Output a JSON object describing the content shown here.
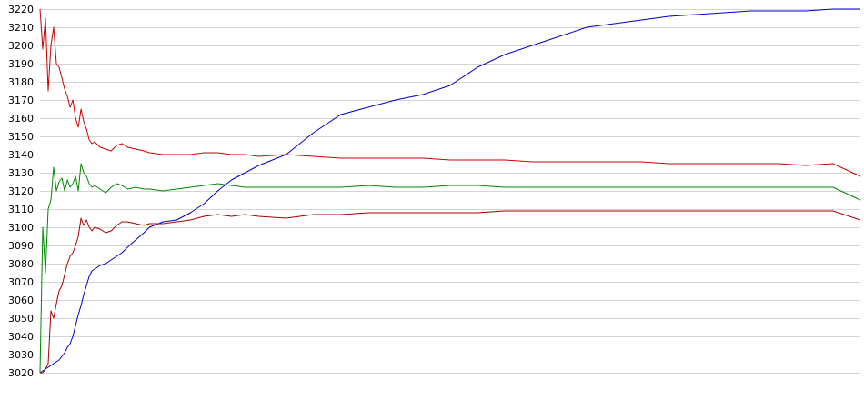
{
  "chart_data": {
    "type": "line",
    "title": "",
    "xlabel": "",
    "ylabel": "",
    "ylim": [
      3020,
      3220
    ],
    "yticks": [
      3220,
      3210,
      3200,
      3190,
      3180,
      3170,
      3160,
      3150,
      3140,
      3130,
      3120,
      3110,
      3100,
      3090,
      3080,
      3070,
      3060,
      3050,
      3040,
      3030,
      3020
    ],
    "y_tick_labels": [
      "3220",
      "3210",
      "3200",
      "3190",
      "3180",
      "3170",
      "3160",
      "3150",
      "3140",
      "3130",
      "3120",
      "3110",
      "3100",
      "3090",
      "3080",
      "3070",
      "3060",
      "3050",
      "3040",
      "3030",
      "3020"
    ],
    "grid": true,
    "legend": "none",
    "x": [
      0,
      1,
      2,
      3,
      4,
      5,
      6,
      7,
      8,
      9,
      10,
      11,
      12,
      13,
      14,
      15,
      16,
      17,
      18,
      19,
      20,
      22,
      24,
      26,
      28,
      30,
      32,
      35,
      38,
      40,
      45,
      50,
      55,
      60,
      65,
      70,
      75,
      80,
      90,
      100,
      110,
      120,
      130,
      140,
      150,
      160,
      170,
      180,
      190,
      200,
      210,
      220,
      230,
      240,
      250,
      260,
      270,
      280,
      290,
      300
    ],
    "series": [
      {
        "color": "#0000cc",
        "values": [
          3020,
          3021,
          3022,
          3023,
          3024,
          3025,
          3026,
          3027,
          3029,
          3031,
          3034,
          3036,
          3040,
          3046,
          3052,
          3057,
          3063,
          3068,
          3073,
          3076,
          3077,
          3079,
          3080,
          3082,
          3084,
          3086,
          3089,
          3093,
          3097,
          3100,
          3103,
          3104,
          3108,
          3113,
          3120,
          3126,
          3130,
          3134,
          3140,
          3152,
          3162,
          3166,
          3170,
          3173,
          3178,
          3188,
          3195,
          3200,
          3205,
          3210,
          3212,
          3214,
          3216,
          3217,
          3218,
          3219,
          3219,
          3219,
          3220,
          3220
        ]
      },
      {
        "color": "#cc0000",
        "values": [
          3220,
          3198,
          3215,
          3175,
          3200,
          3210,
          3190,
          3188,
          3182,
          3176,
          3172,
          3166,
          3170,
          3160,
          3155,
          3165,
          3158,
          3154,
          3148,
          3146,
          3147,
          3144,
          3143,
          3142,
          3145,
          3146,
          3144,
          3143,
          3142,
          3141,
          3140,
          3140,
          3140,
          3141,
          3141,
          3140,
          3140,
          3139,
          3140,
          3139,
          3138,
          3138,
          3138,
          3138,
          3137,
          3137,
          3137,
          3136,
          3136,
          3136,
          3136,
          3136,
          3135,
          3135,
          3135,
          3135,
          3135,
          3134,
          3135,
          3128
        ]
      },
      {
        "color": "#008800",
        "values": [
          3020,
          3100,
          3075,
          3110,
          3115,
          3133,
          3120,
          3125,
          3127,
          3120,
          3126,
          3122,
          3124,
          3128,
          3120,
          3135,
          3130,
          3128,
          3124,
          3122,
          3123,
          3121,
          3119,
          3122,
          3124,
          3123,
          3121,
          3122,
          3121,
          3121,
          3120,
          3121,
          3122,
          3123,
          3124,
          3123,
          3122,
          3122,
          3122,
          3122,
          3122,
          3123,
          3122,
          3122,
          3123,
          3123,
          3122,
          3122,
          3122,
          3122,
          3122,
          3122,
          3122,
          3122,
          3122,
          3122,
          3122,
          3122,
          3122,
          3115
        ]
      },
      {
        "color": "#aa0000",
        "values": [
          3020,
          3020,
          3022,
          3025,
          3054,
          3050,
          3058,
          3065,
          3068,
          3074,
          3080,
          3084,
          3086,
          3090,
          3095,
          3105,
          3101,
          3104,
          3100,
          3098,
          3100,
          3099,
          3097,
          3098,
          3101,
          3103,
          3103,
          3102,
          3101,
          3102,
          3102,
          3103,
          3104,
          3106,
          3107,
          3106,
          3107,
          3106,
          3105,
          3107,
          3107,
          3108,
          3108,
          3108,
          3108,
          3108,
          3109,
          3109,
          3109,
          3109,
          3109,
          3109,
          3109,
          3109,
          3109,
          3109,
          3109,
          3109,
          3109,
          3104
        ]
      }
    ]
  }
}
